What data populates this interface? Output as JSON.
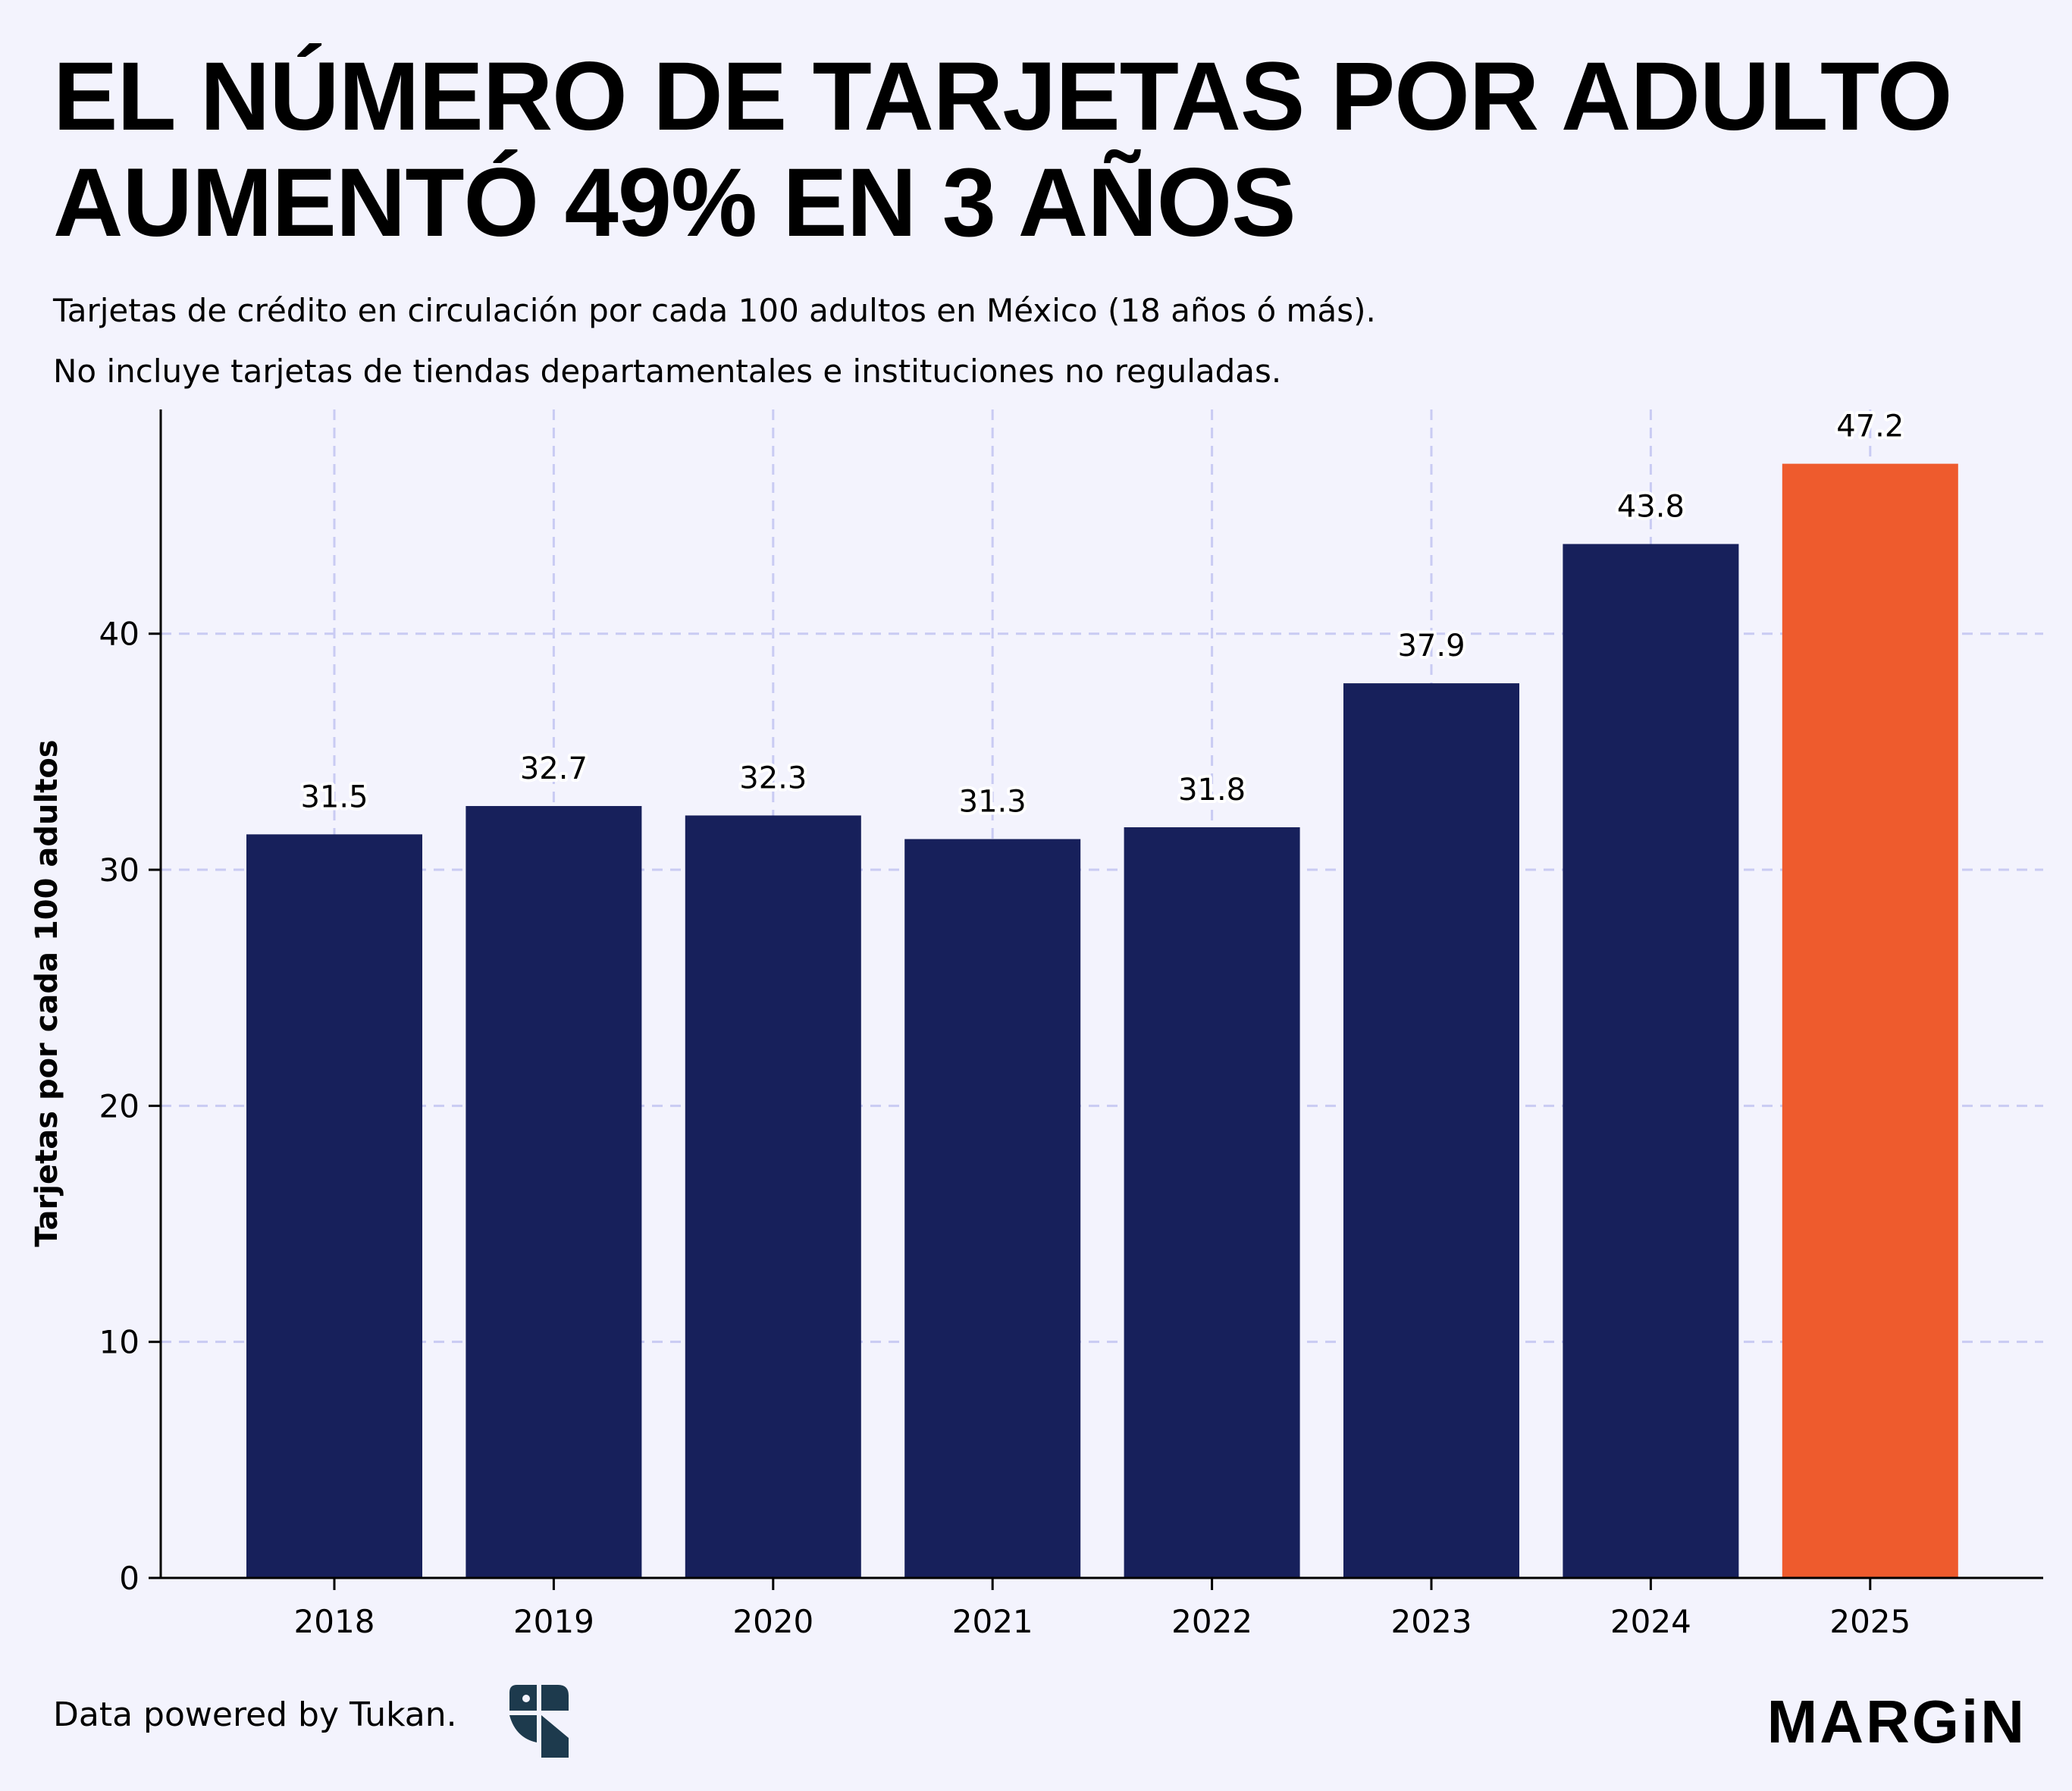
{
  "header": {
    "title_line1": "EL NÚMERO DE TARJETAS POR ADULTO",
    "title_line2": "AUMENTÓ 49% EN 3 AÑOS",
    "subtitle_line1": "Tarjetas de crédito en circulación por cada 100 adultos en México (18 años ó más).",
    "subtitle_line2": "No incluye tarjetas de tiendas departamentales e instituciones no reguladas."
  },
  "footer": {
    "source": "Data powered by Tukan.",
    "brand": "MARGiN",
    "logo_icon": "tukan-logo-icon"
  },
  "colors": {
    "background": "#f3f3fd",
    "bar": "#17205b",
    "highlight": "#ee5b2d",
    "grid": "#c9cbf3",
    "axis": "#000000"
  },
  "chart_data": {
    "type": "bar",
    "title": "EL NÚMERO DE TARJETAS POR ADULTO AUMENTÓ 49% EN 3 AÑOS",
    "xlabel": "",
    "ylabel": "Tarjetas por cada 100 adultos",
    "categories": [
      "2018",
      "2019",
      "2020",
      "2021",
      "2022",
      "2023",
      "2024",
      "2025"
    ],
    "values": [
      31.5,
      32.7,
      32.3,
      31.3,
      31.8,
      37.9,
      43.8,
      47.2
    ],
    "data_labels": [
      "31.5",
      "32.7",
      "32.3",
      "31.3",
      "31.8",
      "37.9",
      "43.8",
      "47.2"
    ],
    "highlight_category": "2025",
    "yticks": [
      0,
      10,
      20,
      30,
      40
    ],
    "ylim": [
      0,
      49.5
    ],
    "grid": true
  }
}
